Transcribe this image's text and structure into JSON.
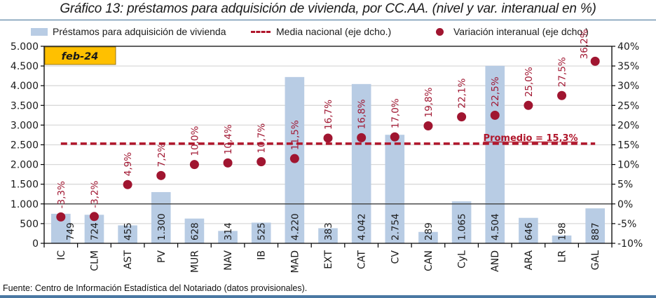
{
  "chart_data": {
    "type": "bar",
    "title": "Gráfico 13: préstamos para adquisición de vivienda, por CC.AA. (nivel y var. interanual en %)",
    "period_badge": "feb-24",
    "categories": [
      "IC",
      "CLM",
      "AST",
      "PV",
      "MUR",
      "NAV",
      "IB",
      "MAD",
      "EXT",
      "CAT",
      "CV",
      "CAN",
      "CyL",
      "AND",
      "ARA",
      "LR",
      "GAL"
    ],
    "series": [
      {
        "name": "Préstamos para adquisición de vivienda",
        "type": "bar",
        "axis": "left",
        "color": "#b8cce4",
        "values": [
          749,
          724,
          455,
          1300,
          628,
          314,
          525,
          4220,
          383,
          4042,
          2754,
          289,
          1065,
          4504,
          646,
          198,
          887
        ],
        "labels": [
          "749",
          "724",
          "455",
          "1.300",
          "628",
          "314",
          "525",
          "4.220",
          "383",
          "4.042",
          "2.754",
          "289",
          "1.065",
          "4.504",
          "646",
          "198",
          "887"
        ]
      },
      {
        "name": "Variación interanual (eje dcho.)",
        "type": "scatter",
        "axis": "right",
        "color": "#a01530",
        "values": [
          -3.3,
          -3.2,
          4.9,
          7.2,
          10.0,
          10.4,
          10.7,
          11.5,
          16.7,
          16.8,
          17.0,
          19.8,
          22.1,
          22.5,
          25.0,
          27.5,
          36.2
        ],
        "labels": [
          "-3,3%",
          "-3,2%",
          "4,9%",
          "7,2%",
          "10,0%",
          "10,4%",
          "10,7%",
          "11,5%",
          "16,7%",
          "16,8%",
          "17,0%",
          "19,8%",
          "22,1%",
          "22,5%",
          "25,0%",
          "27,5%",
          "36,2%"
        ]
      },
      {
        "name": "Media nacional (eje dcho.)",
        "type": "line",
        "axis": "right",
        "color": "#b0162b",
        "value": 15.3,
        "annotation": "Promedio = 15,3%"
      }
    ],
    "left_axis": {
      "ylim": [
        0,
        5000
      ],
      "ticks": [
        0,
        500,
        1000,
        1500,
        2000,
        2500,
        3000,
        3500,
        4000,
        4500,
        5000
      ],
      "tick_labels": [
        "0",
        "500",
        "1.000",
        "1.500",
        "2.000",
        "2.500",
        "3.000",
        "3.500",
        "4.000",
        "4.500",
        "5.000"
      ]
    },
    "right_axis": {
      "ylim": [
        -10,
        40
      ],
      "ticks": [
        -10,
        -5,
        0,
        5,
        10,
        15,
        20,
        25,
        30,
        35,
        40
      ],
      "tick_labels": [
        "-10%",
        "-5%",
        "0%",
        "5%",
        "10%",
        "15%",
        "20%",
        "25%",
        "30%",
        "35%",
        "40%"
      ]
    },
    "grid": true,
    "legend_position": "top",
    "xlabel": "",
    "ylabel": ""
  },
  "legend": {
    "bar": "Préstamos para adquisición de vivienda",
    "line": "Media nacional (eje dcho.)",
    "dot": "Variación interanual (eje dcho.)"
  },
  "footer": "Fuente: Centro de Información Estadística del Notariado (datos provisionales)."
}
